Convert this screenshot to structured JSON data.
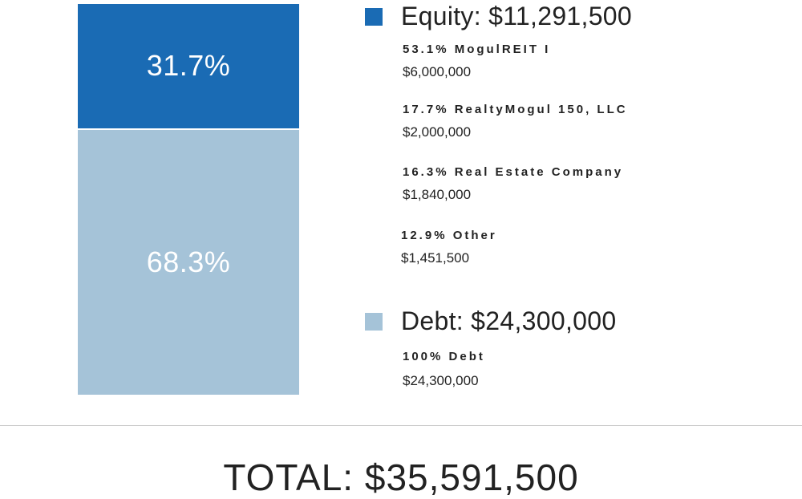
{
  "chart_data": {
    "type": "bar",
    "stacked": true,
    "series": [
      {
        "name": "Equity: $11,291,500",
        "value": 11291500,
        "percent_label": "31.7%",
        "color": "#1a6bb4"
      },
      {
        "name": "Debt: $24,300,000",
        "value": 24300000,
        "percent_label": "68.3%",
        "color": "#a5c3d8"
      }
    ]
  },
  "legend": {
    "equity": {
      "title": "Equity: $11,291,500",
      "color": "#1a6bb4",
      "items": [
        {
          "label": "53.1% MogulREIT I",
          "value": "$6,000,000"
        },
        {
          "label": "17.7% RealtyMogul 150, LLC",
          "value": "$2,000,000"
        },
        {
          "label": "16.3% Real Estate Company",
          "value": "$1,840,000"
        },
        {
          "label": "12.9% Other",
          "value": "$1,451,500"
        }
      ]
    },
    "debt": {
      "title": "Debt: $24,300,000",
      "color": "#a5c3d8",
      "items": [
        {
          "label": "100% Debt",
          "value": "$24,300,000"
        }
      ]
    }
  },
  "total": "TOTAL: $35,591,500"
}
